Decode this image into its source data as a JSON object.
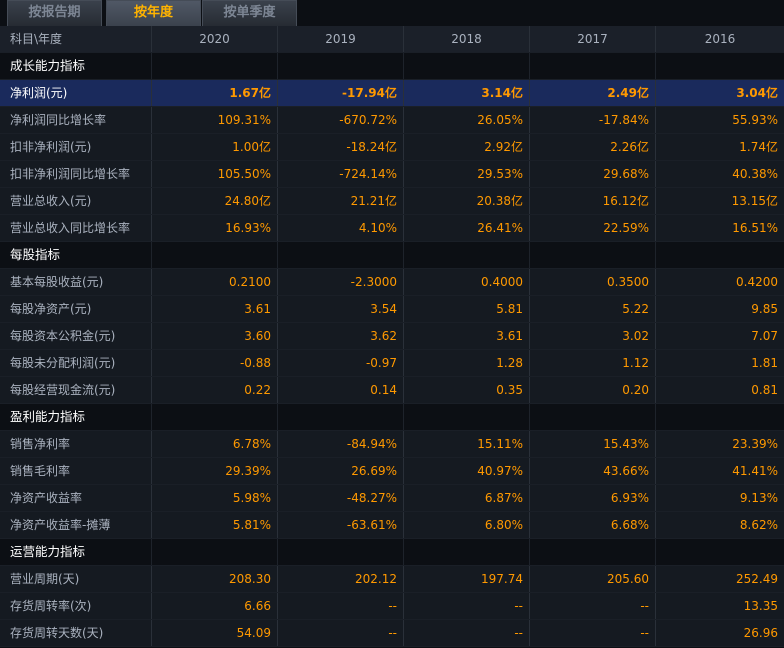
{
  "tabs": [
    {
      "label": "按报告期",
      "active": false
    },
    {
      "label": "按年度",
      "active": true
    },
    {
      "label": "按单季度",
      "active": false
    }
  ],
  "header": {
    "label": "科目\\年度",
    "years": [
      "2020",
      "2019",
      "2018",
      "2017",
      "2016"
    ]
  },
  "rows": [
    {
      "type": "section",
      "label": "成长能力指标"
    },
    {
      "type": "highlight",
      "label": "净利润(元)",
      "values": [
        "1.67亿",
        "-17.94亿",
        "3.14亿",
        "2.49亿",
        "3.04亿"
      ]
    },
    {
      "type": "data",
      "label": "净利润同比增长率",
      "values": [
        "109.31%",
        "-670.72%",
        "26.05%",
        "-17.84%",
        "55.93%"
      ]
    },
    {
      "type": "data",
      "label": "扣非净利润(元)",
      "values": [
        "1.00亿",
        "-18.24亿",
        "2.92亿",
        "2.26亿",
        "1.74亿"
      ]
    },
    {
      "type": "data",
      "label": "扣非净利润同比增长率",
      "values": [
        "105.50%",
        "-724.14%",
        "29.53%",
        "29.68%",
        "40.38%"
      ]
    },
    {
      "type": "data",
      "label": "营业总收入(元)",
      "values": [
        "24.80亿",
        "21.21亿",
        "20.38亿",
        "16.12亿",
        "13.15亿"
      ]
    },
    {
      "type": "data",
      "label": "营业总收入同比增长率",
      "values": [
        "16.93%",
        "4.10%",
        "26.41%",
        "22.59%",
        "16.51%"
      ]
    },
    {
      "type": "section",
      "label": "每股指标"
    },
    {
      "type": "data",
      "label": "基本每股收益(元)",
      "values": [
        "0.2100",
        "-2.3000",
        "0.4000",
        "0.3500",
        "0.4200"
      ]
    },
    {
      "type": "data",
      "label": "每股净资产(元)",
      "values": [
        "3.61",
        "3.54",
        "5.81",
        "5.22",
        "9.85"
      ]
    },
    {
      "type": "data",
      "label": "每股资本公积金(元)",
      "values": [
        "3.60",
        "3.62",
        "3.61",
        "3.02",
        "7.07"
      ]
    },
    {
      "type": "data",
      "label": "每股未分配利润(元)",
      "values": [
        "-0.88",
        "-0.97",
        "1.28",
        "1.12",
        "1.81"
      ]
    },
    {
      "type": "data",
      "label": "每股经营现金流(元)",
      "values": [
        "0.22",
        "0.14",
        "0.35",
        "0.20",
        "0.81"
      ]
    },
    {
      "type": "section",
      "label": "盈利能力指标"
    },
    {
      "type": "data",
      "label": "销售净利率",
      "values": [
        "6.78%",
        "-84.94%",
        "15.11%",
        "15.43%",
        "23.39%"
      ]
    },
    {
      "type": "data",
      "label": "销售毛利率",
      "values": [
        "29.39%",
        "26.69%",
        "40.97%",
        "43.66%",
        "41.41%"
      ]
    },
    {
      "type": "data",
      "label": "净资产收益率",
      "values": [
        "5.98%",
        "-48.27%",
        "6.87%",
        "6.93%",
        "9.13%"
      ]
    },
    {
      "type": "data",
      "label": "净资产收益率-摊薄",
      "values": [
        "5.81%",
        "-63.61%",
        "6.80%",
        "6.68%",
        "8.62%"
      ]
    },
    {
      "type": "section",
      "label": "运营能力指标"
    },
    {
      "type": "data",
      "label": "营业周期(天)",
      "values": [
        "208.30",
        "202.12",
        "197.74",
        "205.60",
        "252.49"
      ]
    },
    {
      "type": "data",
      "label": "存货周转率(次)",
      "values": [
        "6.66",
        "--",
        "--",
        "--",
        "13.35"
      ]
    },
    {
      "type": "data",
      "label": "存货周转天数(天)",
      "values": [
        "54.09",
        "--",
        "--",
        "--",
        "26.96"
      ]
    }
  ]
}
